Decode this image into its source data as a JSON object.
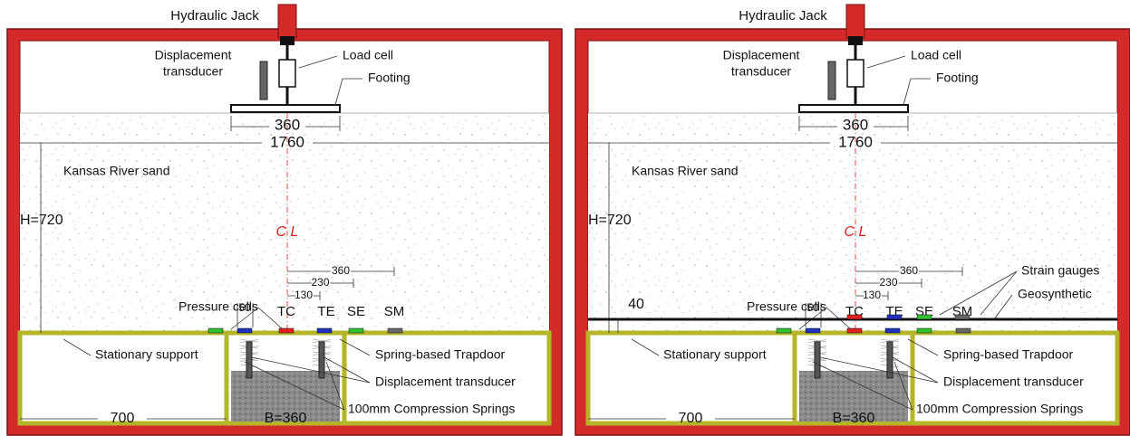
{
  "panels": [
    {
      "jack": "Hydraulic Jack",
      "displacement_transducer_top": [
        "Displacement",
        "transducer"
      ],
      "load_cell": "Load cell",
      "footing": "Footing",
      "footing_width": "360",
      "box_width": "1760",
      "soil": "Kansas River sand",
      "height": "H=720",
      "centerline": "C L",
      "dims": [
        "360",
        "230",
        "130"
      ],
      "spacing": "50",
      "pressure_cells": "Pressure cells",
      "sensors": [
        "TC",
        "TE",
        "SE",
        "SM"
      ],
      "stationary_support": "Stationary support",
      "trapdoor": "Spring-based Trapdoor",
      "displacement_transducer_bottom": "Displacement transducer",
      "springs": "100mm Compression Springs",
      "support_width": "700",
      "trapdoor_width": "B=360"
    },
    {
      "jack": "Hydraulic Jack",
      "displacement_transducer_top": [
        "Displacement",
        "transducer"
      ],
      "load_cell": "Load cell",
      "footing": "Footing",
      "footing_width": "360",
      "box_width": "1760",
      "soil": "Kansas River sand",
      "height": "H=720",
      "centerline": "C L",
      "dims": [
        "360",
        "230",
        "130"
      ],
      "spacing": "50",
      "pressure_cells": "Pressure cells",
      "sensors": [
        "TC",
        "TE",
        "SE",
        "SM"
      ],
      "strain_gauges": "Strain gauges",
      "geosynthetic": "Geosynthetic",
      "geosynthetic_depth": "40",
      "stationary_support": "Stationary support",
      "trapdoor": "Spring-based Trapdoor",
      "displacement_transducer_bottom": "Displacement transducer",
      "springs": "100mm Compression Springs",
      "support_width": "700",
      "trapdoor_width": "B=360"
    }
  ]
}
